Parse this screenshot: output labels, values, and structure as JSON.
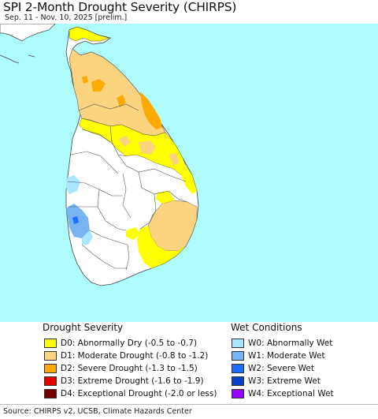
{
  "header": {
    "title": "SPI 2-Month Drought Severity (CHIRPS)",
    "subtitle": "Sep. 11 - Nov. 10, 2025 [prelim.]"
  },
  "colors": {
    "sea": "#aefcfc",
    "land": "#ffffff",
    "boundary": "#444444",
    "D0": "#ffff00",
    "D1": "#fcd37f",
    "D2": "#ffaa00",
    "D3": "#e60000",
    "D4": "#730000",
    "W0": "#aae6ff",
    "W1": "#78b4f0",
    "W2": "#1e6eff",
    "W3": "#0a41c8",
    "W4": "#9600ff"
  },
  "legend": {
    "drought_title": "Drought Severity",
    "wet_title": "Wet Conditions",
    "drought_items": [
      {
        "code": "D0",
        "label": "D0: Abnormally Dry (-0.5 to -0.7)"
      },
      {
        "code": "D1",
        "label": "D1: Moderate Drought (-0.8 to -1.2)"
      },
      {
        "code": "D2",
        "label": "D2: Severe Drought (-1.3 to -1.5)"
      },
      {
        "code": "D3",
        "label": "D3: Extreme Drought (-1.6 to -1.9)"
      },
      {
        "code": "D4",
        "label": "D4: Exceptional Drought (-2.0 or less)"
      }
    ],
    "wet_items": [
      {
        "code": "W0",
        "label": "W0: Abnormally Wet"
      },
      {
        "code": "W1",
        "label": "W1: Moderate Wet"
      },
      {
        "code": "W2",
        "label": "W2: Severe Wet"
      },
      {
        "code": "W3",
        "label": "W3: Extreme Wet"
      },
      {
        "code": "W4",
        "label": "W4: Exceptional Wet"
      }
    ]
  },
  "footer": {
    "source": "Source: CHIRPS v2, UCSB, Climate Hazards Center"
  }
}
